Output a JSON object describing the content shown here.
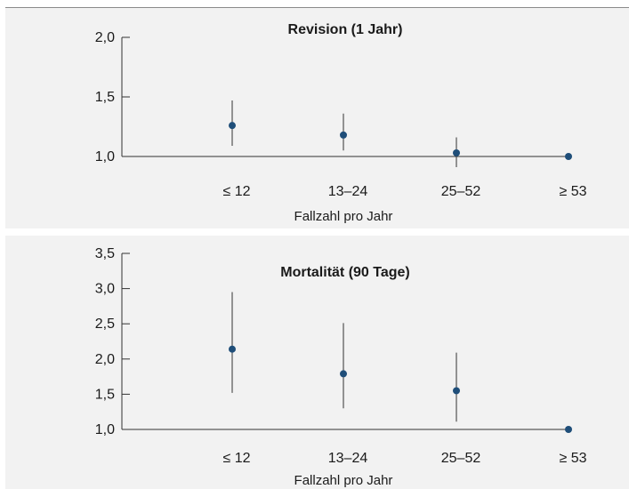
{
  "chart_data": [
    {
      "type": "scatter",
      "title": "Revision (1 Jahr)",
      "xlabel": "Fallzahl pro Jahr",
      "ylabel": "",
      "categories": [
        "≤ 12",
        "13–24",
        "25–52",
        "≥ 53"
      ],
      "values": [
        1.26,
        1.18,
        1.03,
        1.0
      ],
      "error_low": [
        1.09,
        1.05,
        0.91,
        null
      ],
      "error_high": [
        1.47,
        1.36,
        1.16,
        null
      ],
      "ylim": [
        1.0,
        2.0
      ],
      "yticks": [
        1.0,
        1.5,
        2.0
      ],
      "ytick_labels": [
        "1,0",
        "1,5",
        "2,0"
      ],
      "grid": false,
      "color": "#1f4e79"
    },
    {
      "type": "scatter",
      "title": "Mortalität (90 Tage)",
      "xlabel": "Fallzahl pro Jahr",
      "ylabel": "",
      "categories": [
        "≤ 12",
        "13–24",
        "25–52",
        "≥ 53"
      ],
      "values": [
        2.14,
        1.79,
        1.55,
        1.0
      ],
      "error_low": [
        1.52,
        1.3,
        1.11,
        null
      ],
      "error_high": [
        2.95,
        2.51,
        2.09,
        null
      ],
      "ylim": [
        1.0,
        3.5
      ],
      "yticks": [
        1.0,
        1.5,
        2.0,
        2.5,
        3.0,
        3.5
      ],
      "ytick_labels": [
        "1,0",
        "1,5",
        "2,0",
        "2,5",
        "3,0",
        "3,5"
      ],
      "grid": false,
      "color": "#1f4e79"
    }
  ]
}
